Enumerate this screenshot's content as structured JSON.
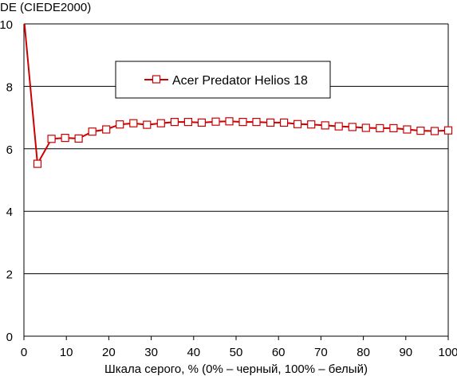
{
  "chart_data": {
    "type": "line",
    "title": "",
    "ylabel": "DE (CIEDE2000)",
    "xlabel": "Шкала серого, % (0% – черный, 100% – белый)",
    "xlim": [
      0,
      100
    ],
    "ylim": [
      0,
      10
    ],
    "x_ticks": [
      "0",
      "10",
      "20",
      "30",
      "40",
      "50",
      "60",
      "70",
      "80",
      "90",
      "100"
    ],
    "y_ticks": [
      "0",
      "2",
      "4",
      "6",
      "8",
      "10"
    ],
    "grid": "horizontal",
    "legend_position": "top-center",
    "series": [
      {
        "name": "Acer Predator Helios 18",
        "color": "#cc0000",
        "marker": "hollow-square",
        "first_point_marker": false,
        "x": [
          0,
          3.2,
          6.5,
          9.7,
          12.9,
          16.1,
          19.4,
          22.6,
          25.8,
          29.0,
          32.3,
          35.5,
          38.7,
          41.9,
          45.2,
          48.4,
          51.6,
          54.8,
          58.1,
          61.3,
          64.5,
          67.7,
          71.0,
          74.2,
          77.4,
          80.6,
          83.9,
          87.1,
          90.3,
          93.5,
          96.8,
          100
        ],
        "values": [
          10.2,
          5.52,
          6.32,
          6.35,
          6.33,
          6.55,
          6.62,
          6.78,
          6.82,
          6.77,
          6.82,
          6.86,
          6.86,
          6.84,
          6.87,
          6.88,
          6.86,
          6.86,
          6.84,
          6.84,
          6.79,
          6.78,
          6.75,
          6.72,
          6.7,
          6.67,
          6.66,
          6.66,
          6.62,
          6.58,
          6.57,
          6.59
        ]
      }
    ]
  }
}
